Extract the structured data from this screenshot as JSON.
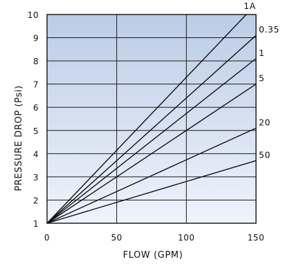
{
  "chart_data": {
    "type": "line",
    "title": "",
    "xlabel": "FLOW (GPM)",
    "ylabel": "PRESSURE DROP (Psi)",
    "xlim": [
      0,
      150
    ],
    "ylim": [
      1,
      10
    ],
    "x_ticks": [
      0,
      50,
      100,
      150
    ],
    "y_ticks": [
      1,
      2,
      3,
      4,
      5,
      6,
      7,
      8,
      9,
      10
    ],
    "grid": true,
    "background": {
      "top_color": "#bccce6",
      "bottom_color": "#eef4fc"
    },
    "line_color": "#111111",
    "series": [
      {
        "name": "1A",
        "x": [
          0,
          143
        ],
        "y": [
          1,
          10
        ]
      },
      {
        "name": "0.35",
        "x": [
          0,
          150
        ],
        "y": [
          1,
          9.1
        ]
      },
      {
        "name": "1",
        "x": [
          0,
          150
        ],
        "y": [
          1,
          8.1
        ]
      },
      {
        "name": "5",
        "x": [
          0,
          150
        ],
        "y": [
          1,
          7.0
        ]
      },
      {
        "name": "20",
        "x": [
          0,
          150
        ],
        "y": [
          1,
          5.1
        ]
      },
      {
        "name": "50",
        "x": [
          0,
          150
        ],
        "y": [
          1,
          3.7
        ]
      }
    ]
  }
}
